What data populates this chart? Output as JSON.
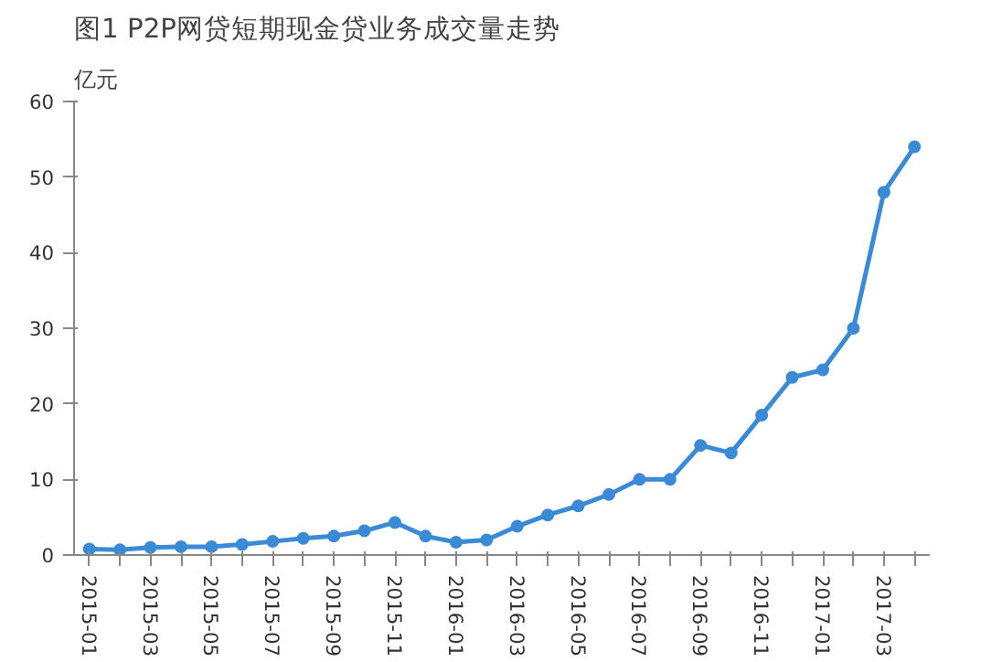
{
  "chart_data": {
    "type": "line",
    "title": "图1  P2P网贷短期现金贷业务成交量走势",
    "ylabel": "亿元",
    "categories": [
      "2015-01",
      null,
      "2015-03",
      null,
      "2015-05",
      null,
      "2015-07",
      null,
      "2015-09",
      null,
      "2015-11",
      null,
      "2016-01",
      null,
      "2016-03",
      null,
      "2016-05",
      null,
      "2016-07",
      null,
      "2016-09",
      null,
      "2016-11",
      null,
      "2017-01",
      null,
      "2017-03",
      null
    ],
    "series": [
      {
        "color": "#3a8ad6",
        "values": [
          0.8,
          0.7,
          1.0,
          1.1,
          1.1,
          1.4,
          1.8,
          2.2,
          2.5,
          3.2,
          4.3,
          2.5,
          1.7,
          2.0,
          3.8,
          5.3,
          6.5,
          8.0,
          10,
          10,
          14.5,
          13.5,
          18.5,
          23.5,
          24.5,
          30,
          48,
          54
        ]
      }
    ],
    "ylim": [
      0,
      60
    ],
    "yticks": [
      0,
      10,
      20,
      30,
      40,
      50,
      60
    ],
    "grid": false,
    "marker": "circle",
    "line_style": "solid"
  }
}
